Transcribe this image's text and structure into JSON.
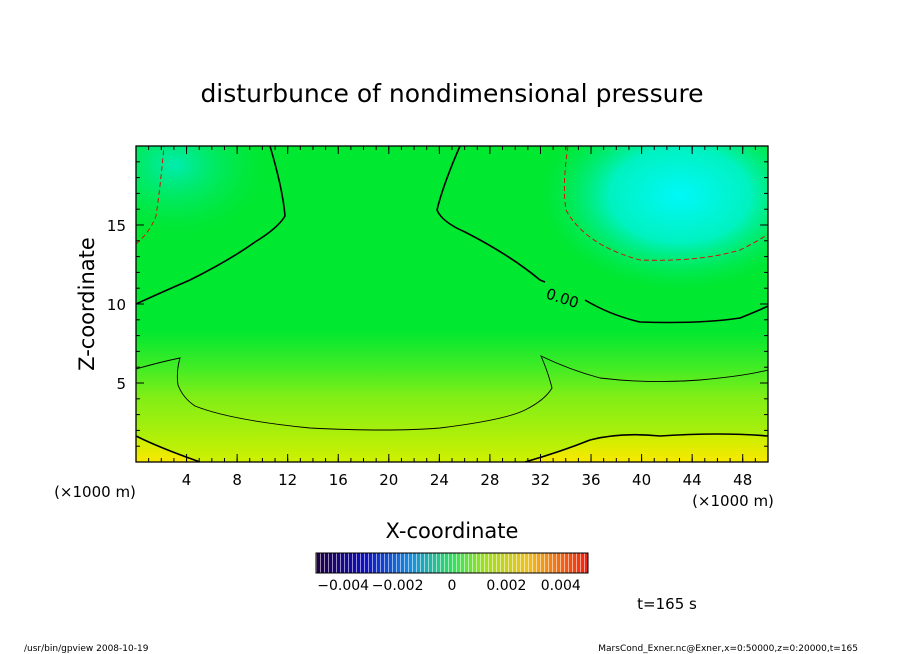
{
  "chart_data": {
    "type": "heatmap",
    "title": "disturbunce of nondimensional pressure",
    "xlabel": "X-coordinate",
    "ylabel": "Z-coordinate",
    "x_units": "(×1000 m)",
    "z_units": "(×1000 m)",
    "xlim": [
      0,
      50
    ],
    "ylim": [
      0,
      20
    ],
    "x_ticks": [
      4,
      8,
      12,
      16,
      20,
      24,
      28,
      32,
      36,
      40,
      44,
      48
    ],
    "y_ticks": [
      5,
      10,
      15
    ],
    "colorbar": {
      "range": [
        -0.005,
        0.005
      ],
      "tick_values": [
        -0.004,
        -0.002,
        0,
        0.002,
        0.004
      ],
      "tick_labels": [
        "−0.004",
        "−0.002",
        "0",
        "0.002",
        "0.004"
      ]
    },
    "contour_label": "0.00",
    "time_label": "t=165 s",
    "footer_left": "/usr/bin/gpview  2008-10-19",
    "footer_right": "MarsCond_Exner.nc@Exner,x=0:50000,z=0:20000,t=165"
  },
  "colors": {
    "green": "#00e830",
    "light_green": "#60f020",
    "cyan": "#00f5f0",
    "yellow": "#f0f000"
  }
}
